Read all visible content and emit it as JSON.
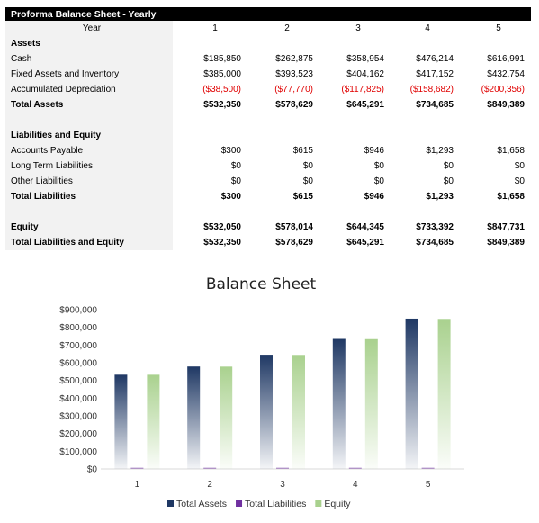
{
  "table": {
    "title": "Proforma Balance Sheet - Yearly",
    "year_label": "Year",
    "years": [
      "1",
      "2",
      "3",
      "4",
      "5"
    ],
    "assets_heading": "Assets",
    "cash_label": "Cash",
    "cash": [
      "$185,850",
      "$262,875",
      "$358,954",
      "$476,214",
      "$616,991"
    ],
    "fixed_label": "Fixed Assets and Inventory",
    "fixed": [
      "$385,000",
      "$393,523",
      "$404,162",
      "$417,152",
      "$432,754"
    ],
    "accum_label": "Accumulated Depreciation",
    "accum": [
      "($38,500)",
      "($77,770)",
      "($117,825)",
      "($158,682)",
      "($200,356)"
    ],
    "total_assets_label": "Total Assets",
    "total_assets": [
      "$532,350",
      "$578,629",
      "$645,291",
      "$734,685",
      "$849,389"
    ],
    "liab_heading": "Liabilities and Equity",
    "ap_label": "Accounts Payable",
    "ap": [
      "$300",
      "$615",
      "$946",
      "$1,293",
      "$1,658"
    ],
    "ltl_label": "Long Term Liabilities",
    "ltl": [
      "$0",
      "$0",
      "$0",
      "$0",
      "$0"
    ],
    "ol_label": "Other Liabilities",
    "ol": [
      "$0",
      "$0",
      "$0",
      "$0",
      "$0"
    ],
    "total_liab_label": "Total Liabilities",
    "total_liab": [
      "$300",
      "$615",
      "$946",
      "$1,293",
      "$1,658"
    ],
    "equity_label": "Equity",
    "equity": [
      "$532,050",
      "$578,014",
      "$644,345",
      "$733,392",
      "$847,731"
    ],
    "tle_label": "Total Liabilities and Equity",
    "tle": [
      "$532,350",
      "$578,629",
      "$645,291",
      "$734,685",
      "$849,389"
    ]
  },
  "colors": {
    "total_assets": "#1f3864",
    "total_liabilities": "#7030a0",
    "equity": "#a9d18e",
    "negative": "#e00000"
  },
  "chart_data": {
    "type": "bar",
    "title": "Balance Sheet",
    "categories": [
      "1",
      "2",
      "3",
      "4",
      "5"
    ],
    "series": [
      {
        "name": "Total Assets",
        "values": [
          532350,
          578629,
          645291,
          734685,
          849389
        ]
      },
      {
        "name": "Total Liabilities",
        "values": [
          300,
          615,
          946,
          1293,
          1658
        ]
      },
      {
        "name": "Equity",
        "values": [
          532050,
          578014,
          644345,
          733392,
          847731
        ]
      }
    ],
    "ylim": [
      0,
      900000
    ],
    "yticks": [
      "$0",
      "$100,000",
      "$200,000",
      "$300,000",
      "$400,000",
      "$500,000",
      "$600,000",
      "$700,000",
      "$800,000",
      "$900,000"
    ],
    "legend": "bottom",
    "grid": false,
    "xlabel": "",
    "ylabel": ""
  }
}
